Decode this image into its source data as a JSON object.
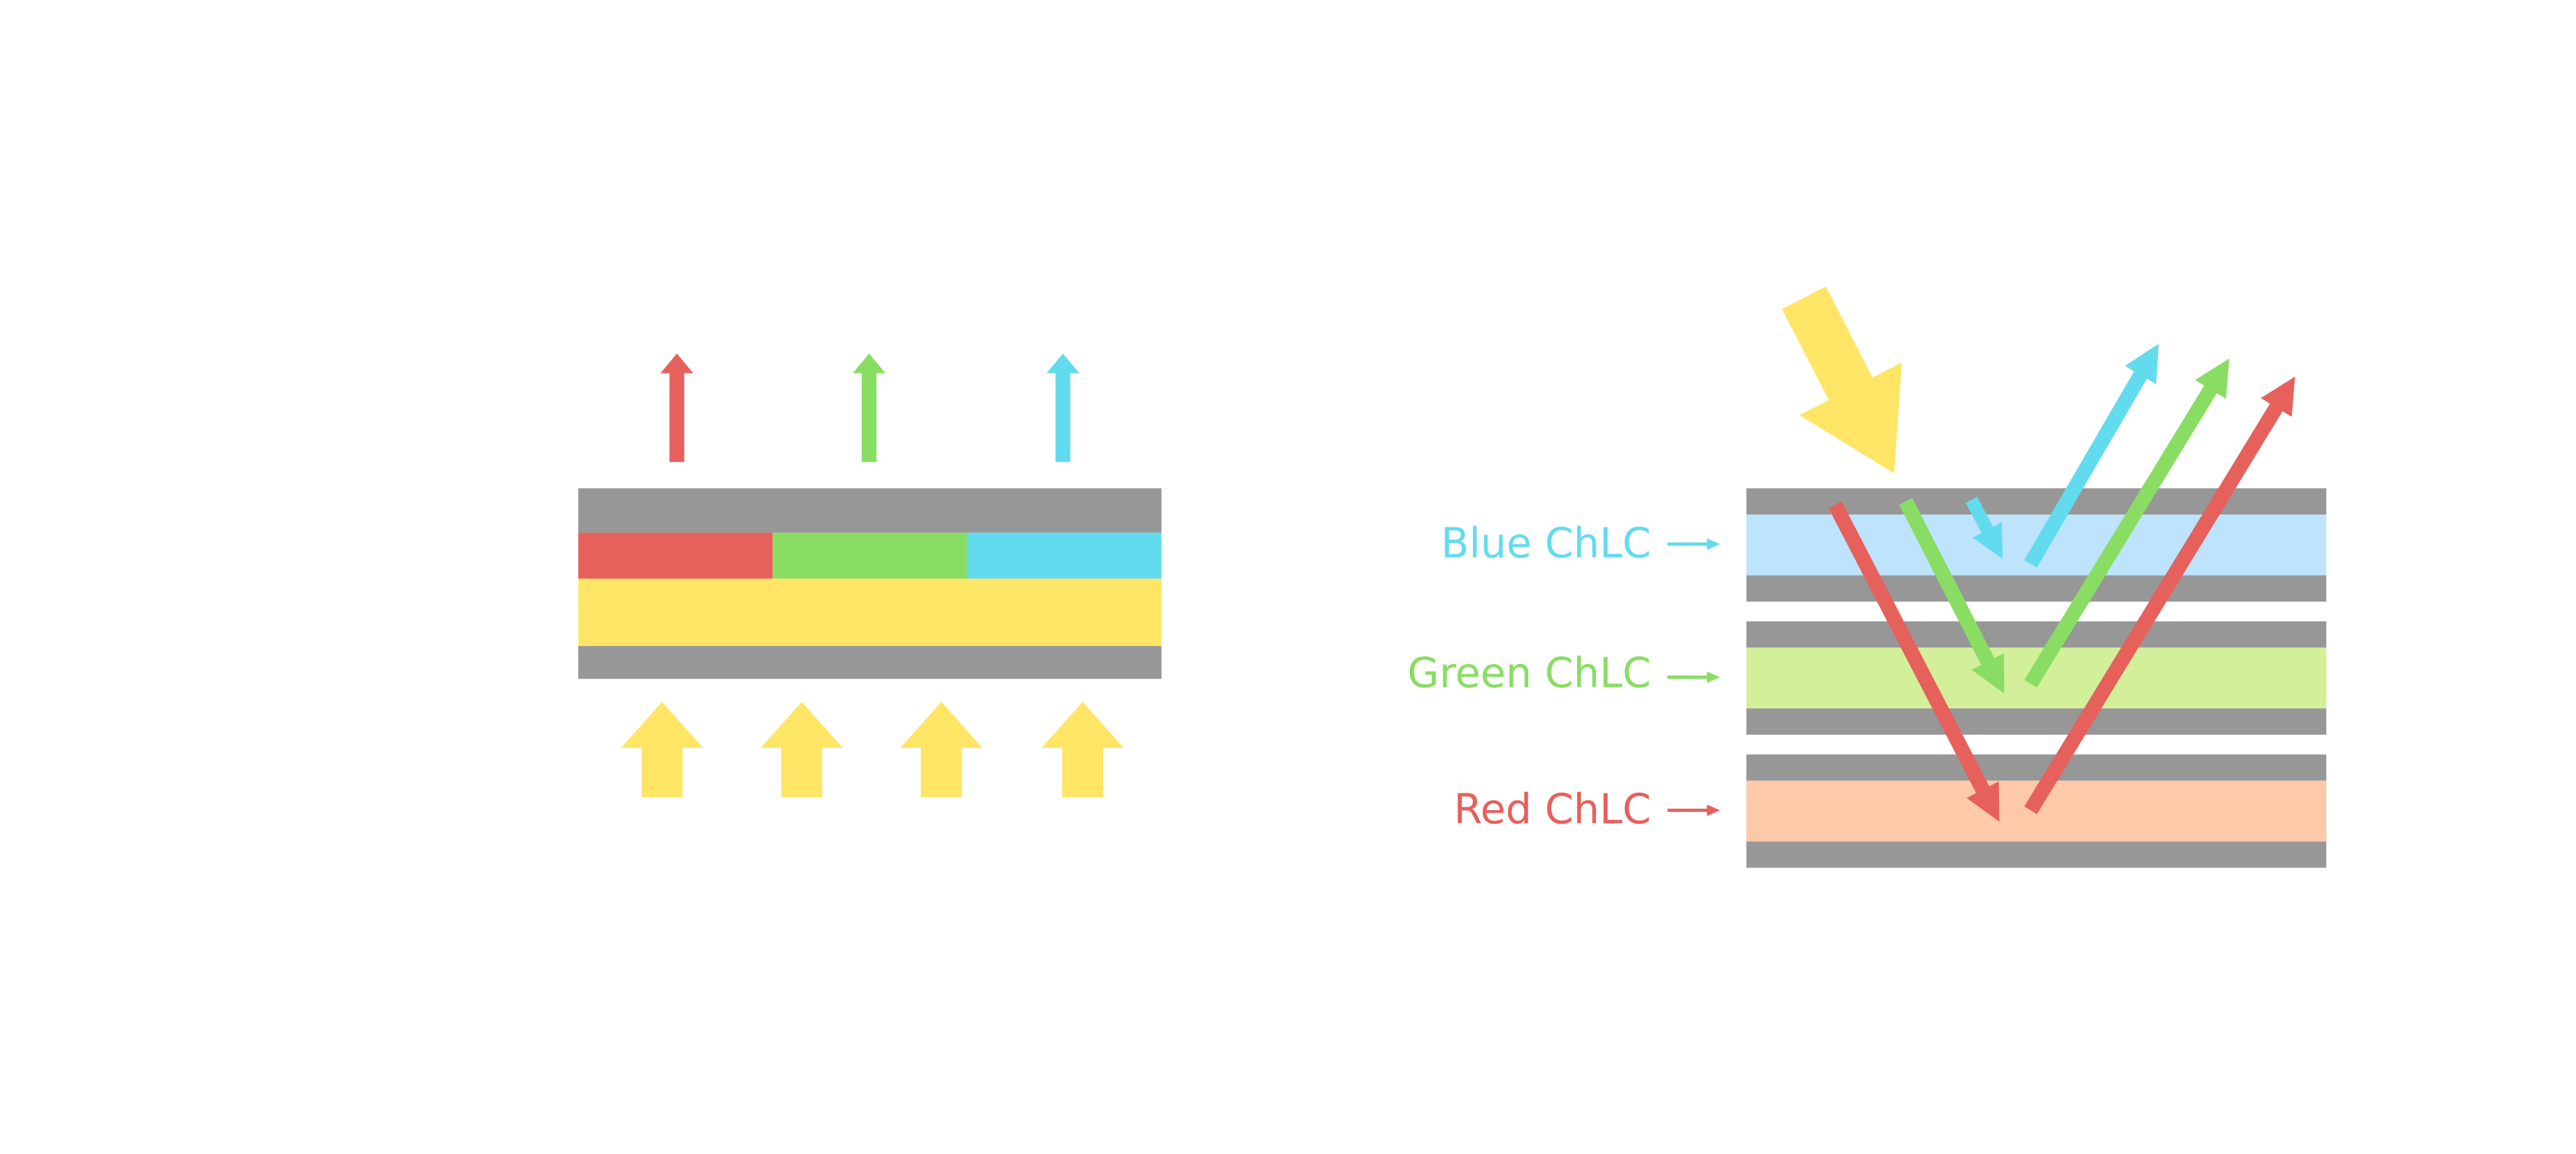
{
  "colors": {
    "gray": "#979797",
    "red": "#e6605c",
    "green": "#89dd63",
    "cyan": "#63dbee",
    "yellow": "#ffe566",
    "blue_layer": "#bde4fc",
    "green_layer": "#d3ef99",
    "red_layer": "#fdc9a9"
  },
  "left_diagram": {
    "filter_segments": [
      "red",
      "green",
      "cyan"
    ],
    "emitted_arrows": [
      "red",
      "green",
      "cyan"
    ],
    "backlight_arrow_count": 4
  },
  "right_diagram": {
    "layers": [
      {
        "label": "Blue ChLC",
        "color_key": "cyan",
        "fill_key": "blue_layer"
      },
      {
        "label": "Green ChLC",
        "color_key": "green",
        "fill_key": "green_layer"
      },
      {
        "label": "Red ChLC",
        "color_key": "red",
        "fill_key": "red_layer"
      }
    ]
  }
}
